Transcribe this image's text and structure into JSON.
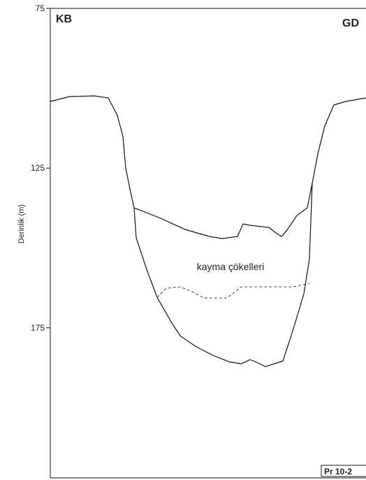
{
  "axis": {
    "label": "Derinlik (m)",
    "ylim": [
      75,
      222
    ],
    "yticks": [
      75,
      125,
      175
    ]
  },
  "labels": {
    "left": "KB",
    "right": "GD",
    "unit": "kayma çökelleri",
    "profile": "Pr 10-2"
  }
}
